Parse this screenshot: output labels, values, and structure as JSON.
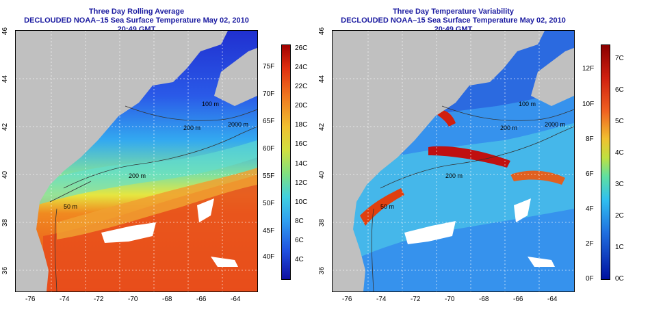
{
  "left_panel": {
    "title_line1": "Three Day Rolling Average",
    "title_line2": "DECLOUDED NOAA–15 Sea Surface Temperature May 02, 2010 20:49 GMT",
    "colorbar_f": [
      "75F",
      "70F",
      "65F",
      "60F",
      "55F",
      "50F",
      "45F",
      "40F"
    ],
    "colorbar_c": [
      "26C",
      "24C",
      "22C",
      "20C",
      "18C",
      "16C",
      "14C",
      "12C",
      "10C",
      "8C",
      "6C",
      "4C"
    ],
    "contour_labels": [
      "100 m",
      "200 m",
      "2000 m",
      "50 m",
      "200 m"
    ]
  },
  "right_panel": {
    "title_line1": "Three Day Temperature Variability",
    "title_line2": "DECLOUDED NOAA–15 Sea Surface Temperature May 02, 2010 20:49 GMT",
    "colorbar_f": [
      "12F",
      "10F",
      "8F",
      "6F",
      "4F",
      "2F",
      "0F"
    ],
    "colorbar_c": [
      "7C",
      "6C",
      "5C",
      "4C",
      "3C",
      "2C",
      "1C",
      "0C"
    ],
    "contour_labels": [
      "100 m",
      "200 m",
      "2000 m",
      "50 m",
      "200 m"
    ]
  },
  "lat_ticks": [
    "46",
    "44",
    "42",
    "40",
    "38",
    "36"
  ],
  "lon_ticks": [
    "-76",
    "-74",
    "-72",
    "-70",
    "-68",
    "-66",
    "-64"
  ],
  "colors": {
    "land": "#c0c0c0",
    "title": "#1a1aa0",
    "cloud": "#ffffff"
  }
}
